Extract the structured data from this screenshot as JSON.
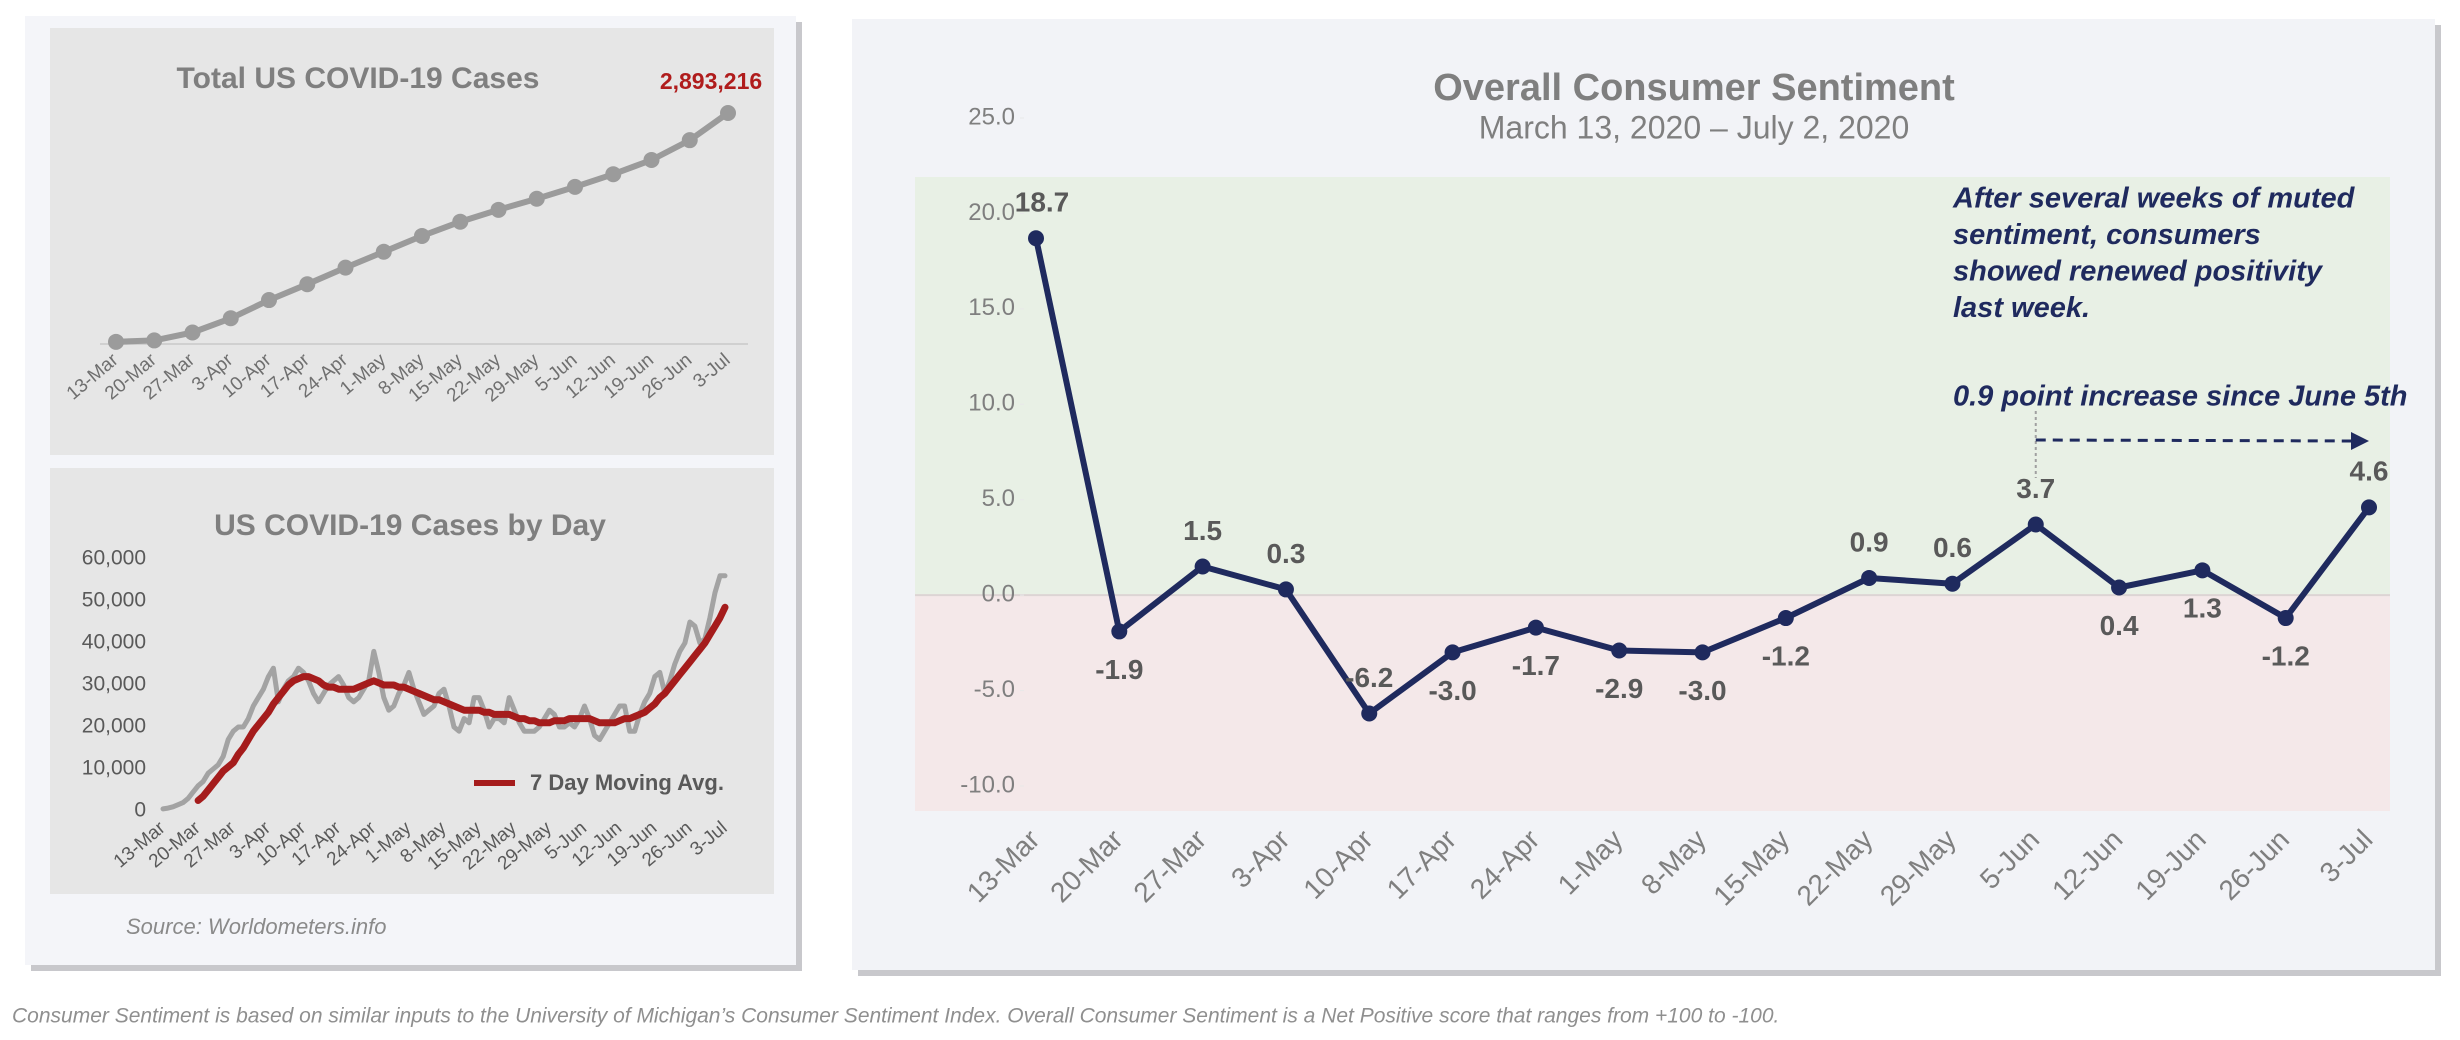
{
  "chart_data": [
    {
      "type": "line",
      "title": "Total US COVID-19 Cases",
      "color": "#9b9b9b",
      "label_color": "#b01c1c",
      "categories": [
        "13-Mar",
        "20-Mar",
        "27-Mar",
        "3-Apr",
        "10-Apr",
        "17-Apr",
        "24-Apr",
        "1-May",
        "8-May",
        "15-May",
        "22-May",
        "29-May",
        "5-Jun",
        "12-Jun",
        "19-Jun",
        "26-Jun",
        "3-Jul"
      ],
      "values": [
        2000,
        20000,
        120000,
        300000,
        530000,
        730000,
        940000,
        1140000,
        1340000,
        1520000,
        1670000,
        1810000,
        1960000,
        2120000,
        2300000,
        2550000,
        2893216
      ],
      "value_labels": [
        null,
        null,
        null,
        null,
        null,
        null,
        null,
        null,
        null,
        null,
        null,
        null,
        null,
        null,
        null,
        null,
        "2,893,216"
      ]
    },
    {
      "type": "line",
      "title": "US COVID-19 Cases by Day",
      "legend": "bottom-right",
      "categories": [
        "13-Mar",
        null,
        null,
        null,
        null,
        null,
        null,
        "20-Mar",
        null,
        null,
        null,
        null,
        null,
        null,
        "27-Mar",
        null,
        null,
        null,
        null,
        null,
        null,
        "3-Apr",
        null,
        null,
        null,
        null,
        null,
        null,
        "10-Apr",
        null,
        null,
        null,
        null,
        null,
        null,
        "17-Apr",
        null,
        null,
        null,
        null,
        null,
        null,
        "24-Apr",
        null,
        null,
        null,
        null,
        null,
        null,
        "1-May",
        null,
        null,
        null,
        null,
        null,
        null,
        "8-May",
        null,
        null,
        null,
        null,
        null,
        null,
        "15-May",
        null,
        null,
        null,
        null,
        null,
        null,
        "22-May",
        null,
        null,
        null,
        null,
        null,
        null,
        "29-May",
        null,
        null,
        null,
        null,
        null,
        null,
        "5-Jun",
        null,
        null,
        null,
        null,
        null,
        null,
        "12-Jun",
        null,
        null,
        null,
        null,
        null,
        null,
        "19-Jun",
        null,
        null,
        null,
        null,
        null,
        null,
        "26-Jun",
        null,
        null,
        null,
        null,
        null,
        null,
        "3-Jul"
      ],
      "ylim": [
        0,
        60000
      ],
      "yticks": [
        0,
        {
          "value": 10000,
          "label": "10,000"
        },
        {
          "value": 20000,
          "label": "20,000"
        },
        {
          "value": 30000,
          "label": "30,000"
        },
        {
          "value": 40000,
          "label": "40,000"
        },
        {
          "value": 50000,
          "label": "50,000"
        },
        {
          "value": 60000,
          "label": "60,000"
        }
      ],
      "series": [
        {
          "color": "#a3a3a3",
          "values": [
            500,
            700,
            1000,
            1500,
            2000,
            3000,
            4500,
            6000,
            7000,
            9000,
            10000,
            11000,
            13000,
            17000,
            19000,
            20000,
            20000,
            22000,
            25000,
            27000,
            29000,
            32000,
            34000,
            26000,
            29000,
            31000,
            32000,
            34000,
            33000,
            31000,
            28000,
            26000,
            28000,
            30000,
            31000,
            32000,
            30000,
            27000,
            26000,
            27000,
            29000,
            31000,
            38000,
            33000,
            27000,
            24000,
            25000,
            28000,
            30000,
            33000,
            29000,
            26000,
            23000,
            24000,
            25000,
            28000,
            29000,
            25000,
            20000,
            19000,
            22000,
            21000,
            27000,
            27000,
            24000,
            20000,
            22000,
            22000,
            21000,
            27000,
            24000,
            21000,
            19000,
            19000,
            19000,
            20000,
            22000,
            24000,
            23000,
            20000,
            20000,
            21000,
            20000,
            22000,
            25000,
            22000,
            18000,
            17000,
            19000,
            21000,
            23000,
            25000,
            25000,
            19000,
            19000,
            23000,
            26000,
            28000,
            32000,
            33000,
            28000,
            31000,
            35000,
            38000,
            40000,
            45000,
            44000,
            40000,
            41000,
            46000,
            52000,
            56000,
            56000
          ]
        },
        {
          "name": "7 Day Moving Avg.",
          "color": "#a51c1c",
          "values": [
            null,
            null,
            null,
            null,
            null,
            null,
            null,
            2500,
            3500,
            5000,
            6500,
            8000,
            9500,
            10500,
            11500,
            13500,
            15000,
            17000,
            19000,
            20500,
            22000,
            23500,
            25500,
            27000,
            28500,
            30000,
            31000,
            31500,
            32000,
            32000,
            31500,
            31000,
            30000,
            29500,
            29500,
            29000,
            29000,
            29000,
            29000,
            29500,
            30000,
            30500,
            31000,
            30500,
            30000,
            30000,
            30000,
            29500,
            29500,
            29000,
            28500,
            28000,
            27500,
            27000,
            26500,
            26500,
            26000,
            25500,
            25000,
            24500,
            24000,
            24000,
            24000,
            24000,
            23500,
            23500,
            23000,
            23000,
            23000,
            23000,
            22500,
            22000,
            22000,
            21500,
            21500,
            21000,
            21000,
            21000,
            21500,
            21500,
            21500,
            22000,
            22000,
            22000,
            22000,
            22000,
            21500,
            21000,
            21000,
            21000,
            21000,
            21500,
            22000,
            22000,
            22500,
            23000,
            23500,
            24500,
            25500,
            27000,
            28000,
            29500,
            31000,
            32500,
            34000,
            35500,
            37000,
            38500,
            40000,
            42000,
            44000,
            46000,
            48500
          ]
        }
      ]
    },
    {
      "type": "line",
      "title": "Overall Consumer Sentiment",
      "subtitle": "March 13, 2020 – July 2, 2020",
      "color": "#1f2a5e",
      "band_colors": {
        "positive": "#e8f0e5",
        "negative": "#f4e8e9"
      },
      "categories": [
        "13-Mar",
        "20-Mar",
        "27-Mar",
        "3-Apr",
        "10-Apr",
        "17-Apr",
        "24-Apr",
        "1-May",
        "8-May",
        "15-May",
        "22-May",
        "29-May",
        "5-Jun",
        "12-Jun",
        "19-Jun",
        "26-Jun",
        "3-Jul"
      ],
      "values": [
        18.7,
        -1.9,
        1.5,
        0.3,
        -6.2,
        -3.0,
        -1.7,
        -2.9,
        -3.0,
        -1.2,
        0.9,
        0.6,
        3.7,
        0.4,
        1.3,
        -1.2,
        4.6
      ],
      "value_labels": [
        "18.7",
        "-1.9",
        "1.5",
        "0.3",
        "-6.2",
        "-3.0",
        "-1.7",
        "-2.9",
        "-3.0",
        "-1.2",
        "0.9",
        "0.6",
        "3.7",
        "0.4",
        "1.3",
        "-1.2",
        "4.6"
      ],
      "ylim": [
        -10,
        25
      ],
      "yticks": [
        {
          "value": -10,
          "label": "-10.0"
        },
        {
          "value": -5,
          "label": "-5.0"
        },
        {
          "value": 0,
          "label": "0.0"
        },
        {
          "value": 5,
          "label": "5.0"
        },
        {
          "value": 10,
          "label": "10.0"
        },
        {
          "value": 15,
          "label": "15.0"
        },
        {
          "value": 20,
          "label": "20.0"
        },
        {
          "value": 25,
          "label": "25.0"
        }
      ],
      "annotation": [
        "After several weeks of muted",
        "sentiment, consumers",
        "showed renewed positivity",
        "last week."
      ],
      "callout": "0.9 point increase since June 5th"
    }
  ],
  "source": "Source: Worldometers.info",
  "footnote": "Consumer Sentiment is based on similar inputs to the University of Michigan’s Consumer Sentiment Index. Overall Consumer Sentiment is a Net Positive score that ranges from +100 to -100."
}
